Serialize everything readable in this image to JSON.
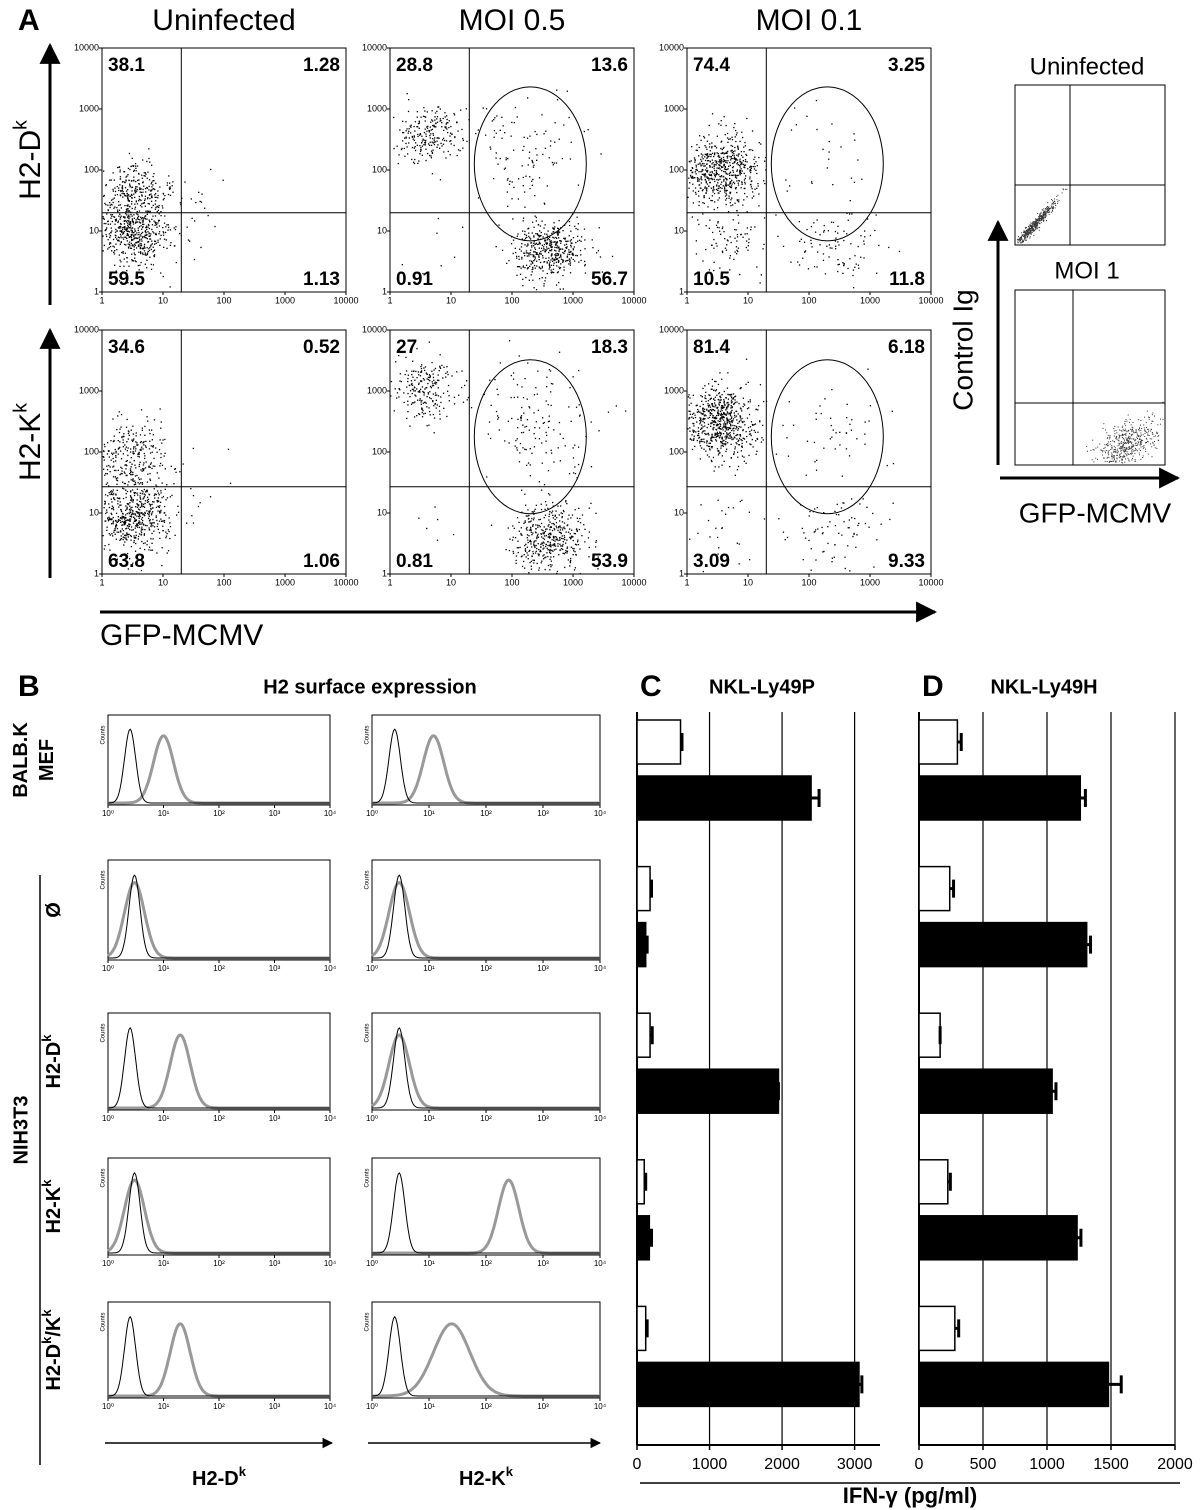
{
  "panel_a": {
    "letter": "A",
    "columns": [
      "Uninfected",
      "MOI 0.5",
      "MOI 0.1"
    ],
    "rows": [
      [
        {
          "t": "H2-D"
        },
        {
          "t": "k",
          "sup": true
        }
      ],
      [
        {
          "t": "H2-K"
        },
        {
          "t": "k",
          "sup": true
        }
      ]
    ],
    "x_label": "GFP-MCMV",
    "axis_ticks": [
      1,
      10,
      100,
      1000,
      10000
    ],
    "quadrants": [
      [
        [
          38.1,
          1.28,
          59.5,
          1.13
        ],
        [
          28.8,
          13.6,
          0.91,
          56.7
        ],
        [
          74.4,
          3.25,
          10.5,
          11.8
        ]
      ],
      [
        [
          34.6,
          0.52,
          63.8,
          1.06
        ],
        [
          27,
          18.3,
          0.81,
          53.9
        ],
        [
          81.4,
          6.18,
          3.09,
          9.33
        ]
      ]
    ],
    "control": {
      "titles": [
        "Uninfected",
        "MOI 1"
      ],
      "y_label": "Control Ig",
      "x_label": "GFP-MCMV"
    }
  },
  "panel_b": {
    "letter": "B",
    "title": "H2 surface expression",
    "row_labels": [
      [
        [
          {
            "t": "BALB.K"
          }
        ],
        [
          {
            "t": "MEF"
          }
        ]
      ],
      [
        [
          {
            "t": "Ø"
          }
        ]
      ],
      [
        [
          {
            "t": "H2-D"
          },
          {
            "t": "k",
            "sup": true
          }
        ]
      ],
      [
        [
          {
            "t": "H2-K"
          },
          {
            "t": "k",
            "sup": true
          }
        ]
      ],
      [
        [
          {
            "t": "H2-D"
          },
          {
            "t": "k",
            "sup": true
          },
          {
            "t": "/K"
          },
          {
            "t": "k",
            "sup": true
          }
        ]
      ]
    ],
    "group_label": "NIH3T3",
    "y_label": "Counts",
    "x_labels": [
      [
        {
          "t": "H2-D"
        },
        {
          "t": "k",
          "sup": true
        }
      ],
      [
        {
          "t": "H2-K"
        },
        {
          "t": "k",
          "sup": true
        }
      ]
    ],
    "xticks": [
      {
        "value": 1,
        "label": "10⁰"
      },
      {
        "value": 10,
        "label": "10¹"
      },
      {
        "value": 100,
        "label": "10²"
      },
      {
        "value": 1000,
        "label": "10³"
      },
      {
        "value": 10000,
        "label": "10⁴"
      }
    ],
    "histograms": [
      [
        {
          "isotype": 2.5,
          "stain": 10
        },
        {
          "isotype": 2.5,
          "stain": 12
        }
      ],
      [
        {
          "isotype": 3,
          "stain": 3
        },
        {
          "isotype": 3,
          "stain": 3
        }
      ],
      [
        {
          "isotype": 2.5,
          "stain": 20
        },
        {
          "isotype": 3,
          "stain": 3
        }
      ],
      [
        {
          "isotype": 3,
          "stain": 3
        },
        {
          "isotype": 3,
          "stain": 250
        }
      ],
      [
        {
          "isotype": 2.5,
          "stain": 20
        },
        {
          "isotype": 2.5,
          "stain": 25
        }
      ]
    ]
  },
  "chart_data": [
    {
      "type": "bar",
      "orientation": "horizontal",
      "panel_label": "C",
      "title": "NKL-Ly49P",
      "xlim": [
        0,
        3350
      ],
      "xticks": [
        0,
        1000,
        2000,
        3000
      ],
      "grid": true,
      "series": [
        {
          "color": "#ffffff",
          "values": [
            600,
            180,
            180,
            100,
            120
          ],
          "errors": [
            20,
            20,
            30,
            20,
            20
          ]
        },
        {
          "color": "#000000",
          "values": [
            2400,
            120,
            1950,
            170,
            3060
          ],
          "errors": [
            110,
            20,
            0,
            30,
            40
          ]
        }
      ]
    },
    {
      "type": "bar",
      "orientation": "horizontal",
      "panel_label": "D",
      "title": "NKL-Ly49H",
      "xlim": [
        0,
        2000
      ],
      "xticks": [
        0,
        500,
        1000,
        1500,
        2000
      ],
      "grid": true,
      "series": [
        {
          "color": "#ffffff",
          "values": [
            300,
            240,
            165,
            225,
            280
          ],
          "errors": [
            30,
            30,
            0,
            20,
            30
          ]
        },
        {
          "color": "#000000",
          "values": [
            1260,
            1310,
            1040,
            1235,
            1480
          ],
          "errors": [
            40,
            30,
            30,
            30,
            100
          ]
        }
      ]
    }
  ],
  "shared_x_label": "IFN-γ (pg/ml)"
}
